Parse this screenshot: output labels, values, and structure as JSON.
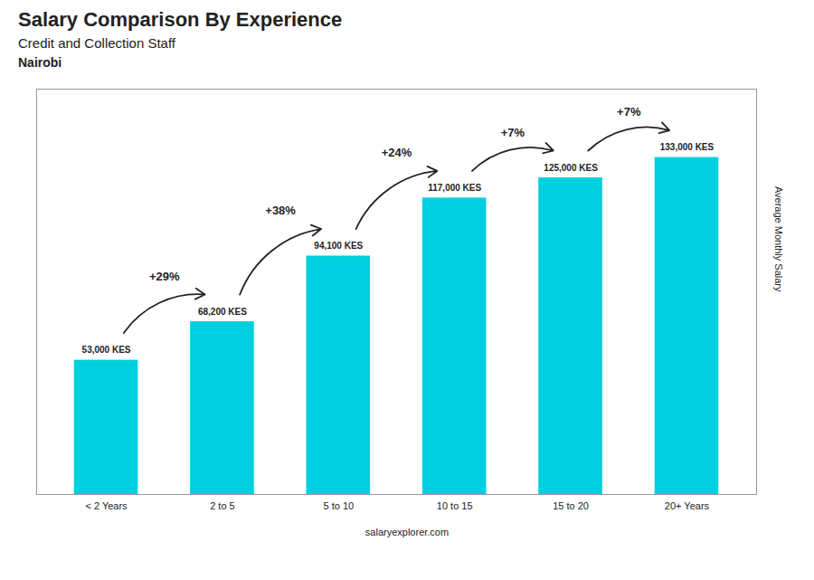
{
  "chart_data": {
    "type": "bar",
    "title": "Salary Comparison By Experience",
    "subtitle": "Credit and Collection Staff",
    "annotations": [
      "Nairobi",
      "salaryexplorer.com"
    ],
    "ylabel": "Average Monthly Salary",
    "categories": [
      "< 2 Years",
      "2 to 5",
      "5 to 10",
      "10 to 15",
      "15 to 20",
      "20+ Years"
    ],
    "values": [
      53000,
      68200,
      94100,
      117000,
      125000,
      133000
    ],
    "value_labels": [
      "53,000 KES",
      "68,200 KES",
      "94,100 KES",
      "117,000 KES",
      "125,000 KES",
      "133,000 KES"
    ],
    "data_labels": true,
    "changes": [
      null,
      29,
      38,
      24,
      7,
      7
    ],
    "change_labels": [
      null,
      "+29%",
      "+38%",
      "+24%",
      "+7%",
      "+7%"
    ],
    "color": "#00CFDF",
    "ylim": [
      0,
      160000
    ],
    "yticks": [],
    "tick_labels": "x",
    "grid": false
  }
}
